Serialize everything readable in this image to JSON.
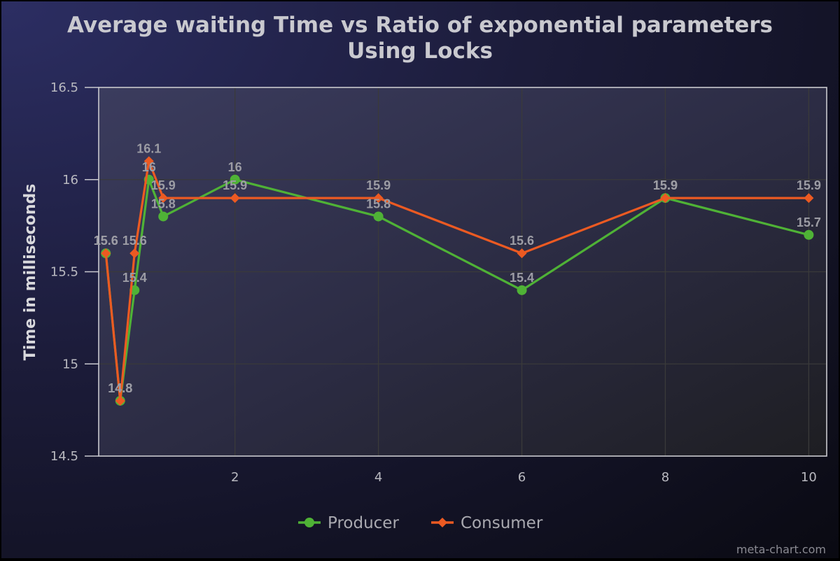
{
  "chart_data": {
    "type": "line",
    "title": "Average waiting Time vs Ratio of exponential parameters",
    "subtitle": "Using Locks",
    "xlabel": "",
    "ylabel": "Time in milliseconds",
    "xlim": [
      0.1,
      10.25
    ],
    "ylim": [
      14.5,
      16.5
    ],
    "x_ticks": [
      2,
      4,
      6,
      8,
      10
    ],
    "y_ticks": [
      14.5,
      15,
      15.5,
      16,
      16.5
    ],
    "grid": true,
    "legend_position": "bottom",
    "series": [
      {
        "name": "Producer",
        "color": "#4fb236",
        "marker": "circle",
        "points": [
          {
            "x": 0.2,
            "y": 15.6
          },
          {
            "x": 0.4,
            "y": 14.8
          },
          {
            "x": 0.6,
            "y": 15.4
          },
          {
            "x": 0.8,
            "y": 16
          },
          {
            "x": 1,
            "y": 15.8
          },
          {
            "x": 2,
            "y": 16
          },
          {
            "x": 4,
            "y": 15.8
          },
          {
            "x": 6,
            "y": 15.4
          },
          {
            "x": 8,
            "y": 15.9
          },
          {
            "x": 10,
            "y": 15.7
          }
        ]
      },
      {
        "name": "Consumer",
        "color": "#ec5a22",
        "marker": "diamond",
        "points": [
          {
            "x": 0.2,
            "y": 15.6
          },
          {
            "x": 0.4,
            "y": 14.8
          },
          {
            "x": 0.6,
            "y": 15.6
          },
          {
            "x": 0.8,
            "y": 16.1
          },
          {
            "x": 1,
            "y": 15.9
          },
          {
            "x": 2,
            "y": 15.9
          },
          {
            "x": 4,
            "y": 15.9
          },
          {
            "x": 6,
            "y": 15.6
          },
          {
            "x": 8,
            "y": 15.9
          },
          {
            "x": 10,
            "y": 15.9
          }
        ]
      }
    ]
  },
  "credit": "meta-chart.com"
}
